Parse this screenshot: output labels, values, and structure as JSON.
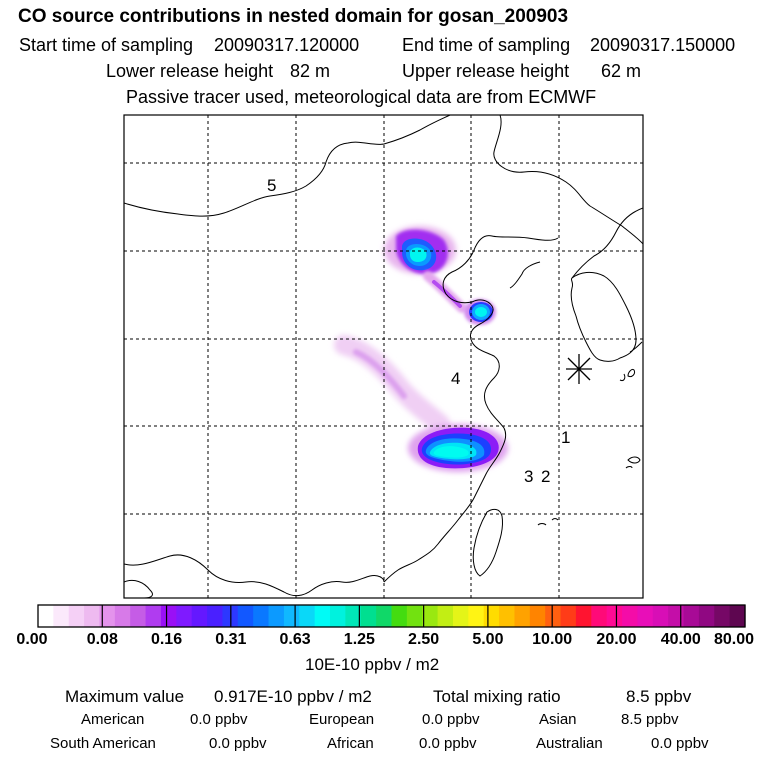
{
  "header": {
    "title": "CO  source contributions in nested domain for gosan_200903",
    "start_label": "Start time of sampling",
    "start_value": "20090317.120000",
    "end_label": "End time of sampling",
    "end_value": "20090317.150000",
    "lower_label": "Lower release height",
    "lower_value": "82 m",
    "upper_label": "Upper release height",
    "upper_value": "62 m",
    "note": "Passive tracer used, meteorological data are from ECMWF"
  },
  "chart_data": {
    "type": "heatmap",
    "title": "CO  source contributions in nested domain for gosan_200903",
    "region_labels": [
      "5",
      "4",
      "1",
      "3",
      "2"
    ],
    "colorbar": {
      "tick_labels": [
        "0.00",
        "0.08",
        "0.16",
        "0.31",
        "0.63",
        "1.25",
        "2.50",
        "5.00",
        "10.00",
        "20.00",
        "40.00",
        "80.00"
      ],
      "ticks": [
        0.0,
        0.08,
        0.16,
        0.31,
        0.63,
        1.25,
        2.5,
        5.0,
        10.0,
        20.0,
        40.0,
        80.0
      ],
      "unit": "10E-10 ppbv / m2",
      "colors": [
        "#ffffff",
        "#fbe9fb",
        "#f5d0f6",
        "#eebaf0",
        "#e493ec",
        "#d77ae8",
        "#c55ce6",
        "#b03cf0",
        "#9a10f6",
        "#7f1aff",
        "#6418ff",
        "#4a20ff",
        "#2d38ff",
        "#1258ff",
        "#0a78ff",
        "#0c9aff",
        "#10b8ff",
        "#0ad8f8",
        "#00fbf6",
        "#00f2de",
        "#00e8b8",
        "#00df90",
        "#10d868",
        "#44dc10",
        "#72e210",
        "#9ae810",
        "#c2ee14",
        "#e4f418",
        "#fff414",
        "#ffdc00",
        "#ffc000",
        "#ffa200",
        "#ff8400",
        "#ff6010",
        "#ff3c18",
        "#ff1430",
        "#ff0a78",
        "#ff0a94",
        "#f40ca8",
        "#e80eb8",
        "#d80eb6",
        "#c40ea8",
        "#a80a96",
        "#900882",
        "#760866",
        "#5e0650"
      ]
    }
  },
  "stats": {
    "max_label": "Maximum value",
    "max_value": "0.917E-10 ppbv / m2",
    "total_label": "Total mixing ratio",
    "total_value": "8.5 ppbv",
    "sources": [
      {
        "name": "American",
        "value": "0.0 ppbv"
      },
      {
        "name": "European",
        "value": "0.0 ppbv"
      },
      {
        "name": "Asian",
        "value": "8.5 ppbv"
      },
      {
        "name": "South American",
        "value": "0.0 ppbv"
      },
      {
        "name": "African",
        "value": "0.0 ppbv"
      },
      {
        "name": "Australian",
        "value": "0.0 ppbv"
      }
    ]
  }
}
